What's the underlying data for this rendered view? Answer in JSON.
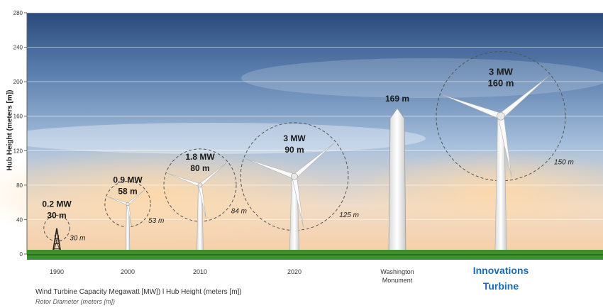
{
  "chart_data": {
    "type": "bar",
    "ylabel": "Hub Height (meters [m])",
    "ylim": [
      0,
      280
    ],
    "y_ticks": [
      "0",
      "40",
      "80",
      "120",
      "160",
      "200",
      "240",
      "280"
    ],
    "grid": true,
    "categories": [
      "1990",
      "2000",
      "2010",
      "2020",
      "Washington Monument",
      "Innovations Turbine"
    ],
    "series": [
      {
        "name": "Hub Height (meters [m])",
        "values": [
          30,
          58,
          80,
          90,
          169,
          160
        ]
      },
      {
        "name": "Wind Turbine Capacity Megawatt [MW]",
        "values": [
          0.2,
          0.9,
          1.8,
          3,
          null,
          3
        ]
      },
      {
        "name": "Rotor Diameter (meters [m])",
        "values": [
          30,
          53,
          84,
          125,
          null,
          150
        ]
      }
    ],
    "items": [
      {
        "category": "1990",
        "x_label": "1990",
        "label_line1": "0.2 MW",
        "label_line2": "30 m",
        "rotor_label": "30 m",
        "kind": "lattice"
      },
      {
        "category": "2000",
        "x_label": "2000",
        "label_line1": "0.9 MW",
        "label_line2": "58 m",
        "rotor_label": "53 m",
        "kind": "turbine"
      },
      {
        "category": "2010",
        "x_label": "2010",
        "label_line1": "1.8 MW",
        "label_line2": "80 m",
        "rotor_label": "84 m",
        "kind": "turbine"
      },
      {
        "category": "2020",
        "x_label": "2020",
        "label_line1": "3 MW",
        "label_line2": "90 m",
        "rotor_label": "125 m",
        "kind": "turbine"
      },
      {
        "category": "Washington Monument",
        "x_label": "Washington",
        "x_label2": "Monument",
        "label_line1": "169 m",
        "label_line2": "",
        "rotor_label": "",
        "kind": "monument"
      },
      {
        "category": "Innovations Turbine",
        "x_label": "Innovations",
        "x_label2": "Turbine",
        "label_line1": "3 MW",
        "label_line2": "160 m",
        "rotor_label": "150 m",
        "kind": "turbine",
        "highlight": true
      }
    ],
    "footnote": "Wind Turbine Capacity Megawatt [MW]) l Hub Height (meters [m])",
    "footnote2": "Rotor Diameter (meters [m])"
  },
  "colors": {
    "sky_top": "#2a4a7c",
    "sky_mid": "#8aaed3",
    "sky_glow": "#f6d3ad",
    "grass": "#3f8f2c",
    "tower": "#f2f2f2",
    "highlight_label": "#1b6bb5",
    "text": "#1a1a1a"
  }
}
